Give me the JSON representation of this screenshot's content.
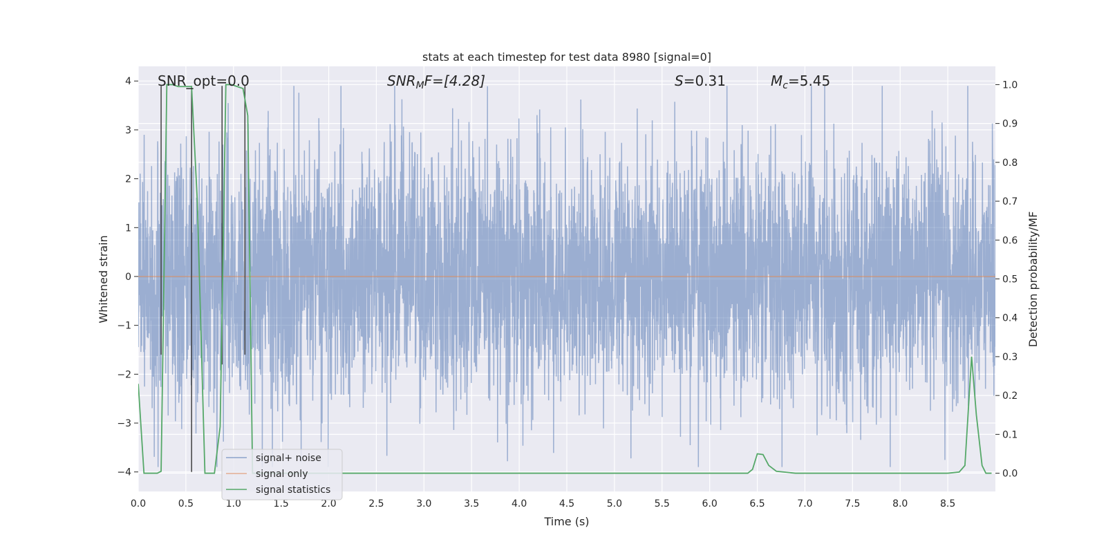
{
  "chart_data": {
    "type": "line",
    "title": "stats at each timestep for test data 8980 [signal=0]",
    "xlabel": "Time (s)",
    "ylabel": "Whitened strain",
    "ylabel_right": "Detection probability/MF",
    "xlim": [
      0.0,
      9.0
    ],
    "ylim": [
      -4.4,
      4.3
    ],
    "ylim_right": [
      -0.047,
      1.047
    ],
    "x_ticks": [
      0.0,
      0.5,
      1.0,
      1.5,
      2.0,
      2.5,
      3.0,
      3.5,
      4.0,
      4.5,
      5.0,
      5.5,
      6.0,
      6.5,
      7.0,
      7.5,
      8.0,
      8.5
    ],
    "x_tick_labels": [
      "0.0",
      "0.5",
      "1.0",
      "1.5",
      "2.0",
      "2.5",
      "3.0",
      "3.5",
      "4.0",
      "4.5",
      "5.0",
      "5.5",
      "6.0",
      "6.5",
      "7.0",
      "7.5",
      "8.0",
      "8.5"
    ],
    "y_ticks": [
      -4,
      -3,
      -2,
      -1,
      0,
      1,
      2,
      3,
      4
    ],
    "y_tick_labels": [
      "−4",
      "−3",
      "−2",
      "−1",
      "0",
      "1",
      "2",
      "3",
      "4"
    ],
    "y_right_ticks": [
      0.0,
      0.1,
      0.2,
      0.3,
      0.4,
      0.5,
      0.6,
      0.7,
      0.8,
      0.9,
      1.0
    ],
    "y_right_tick_labels": [
      "0.0",
      "0.1",
      "0.2",
      "0.3",
      "0.4",
      "0.5",
      "0.6",
      "0.7",
      "0.8",
      "0.9",
      "1.0"
    ],
    "annotations": {
      "snr_opt": "SNR_opt=0.0",
      "snr_mf_sym": "SNR",
      "snr_mf_sub": "M",
      "snr_mf_rest": "F=[4.28]",
      "s_sym": "S",
      "s_rest": "=0.31",
      "mc_sym": "M",
      "mc_sub": "c",
      "mc_rest": "=5.45"
    },
    "legend": {
      "position": "lower-left",
      "entries": [
        "signal+ noise",
        "signal only",
        "signal statistics"
      ]
    },
    "series": [
      {
        "name": "signal+ noise",
        "axis": "left",
        "color": "#4c72b0",
        "description": "whitened noisy strain, dense random trace, roughly within [-3.9, 3.9]"
      },
      {
        "name": "signal only",
        "axis": "left",
        "color": "#dd8452",
        "x": [
          0.0,
          9.0
        ],
        "values": [
          0.0,
          0.0
        ]
      },
      {
        "name": "signal statistics",
        "axis": "right",
        "color": "#55a868",
        "x": [
          0.0,
          0.06,
          0.12,
          0.2,
          0.24,
          0.3,
          0.36,
          0.42,
          0.5,
          0.56,
          0.62,
          0.7,
          0.8,
          0.86,
          0.92,
          0.98,
          1.04,
          1.1,
          1.15,
          1.2,
          1.3,
          1.5,
          2.0,
          3.0,
          4.0,
          5.0,
          6.0,
          6.4,
          6.45,
          6.5,
          6.56,
          6.62,
          6.7,
          6.9,
          7.5,
          8.0,
          8.5,
          8.62,
          8.68,
          8.75,
          8.8,
          8.86,
          8.9,
          8.96
        ],
        "values": [
          0.23,
          0.0,
          0.0,
          0.0,
          0.005,
          1.0,
          1.0,
          0.995,
          0.995,
          0.995,
          0.7,
          0.0,
          0.0,
          0.12,
          1.0,
          1.0,
          0.995,
          0.99,
          0.92,
          0.0,
          0.0,
          0.0,
          0.0,
          0.0,
          0.0,
          0.0,
          0.0,
          0.0,
          0.01,
          0.05,
          0.048,
          0.02,
          0.005,
          0.0,
          0.0,
          0.0,
          0.0,
          0.003,
          0.02,
          0.3,
          0.15,
          0.02,
          0.0,
          0.0
        ]
      },
      {
        "name": "detection markers",
        "axis": "left",
        "color": "#404040",
        "x": [
          0.24,
          0.56,
          0.88,
          1.12
        ],
        "y_top": [
          3.9,
          3.9,
          3.9,
          3.9
        ],
        "y_bottom": [
          -1.6,
          -4.0,
          -1.8,
          -1.6
        ]
      }
    ]
  }
}
